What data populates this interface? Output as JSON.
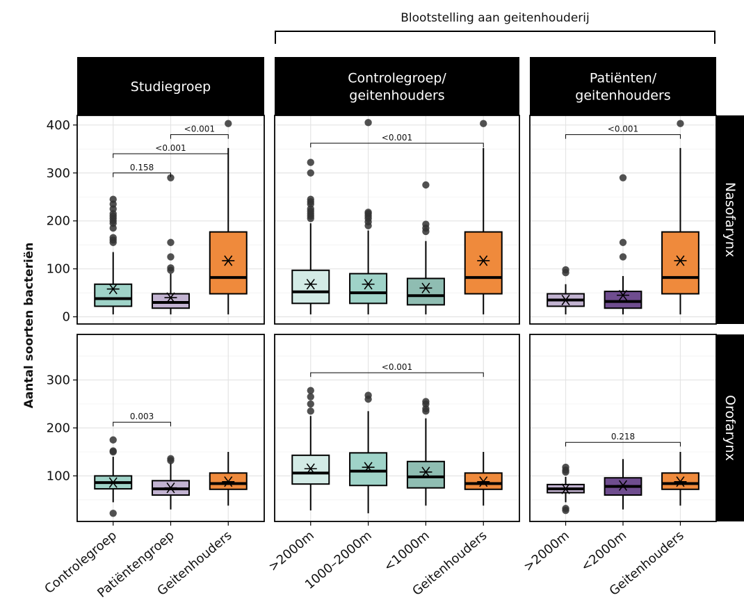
{
  "chart_data": {
    "type": "boxplot",
    "ylabel": "Aantal soorten bacteriën",
    "top_bracket_label": "Blootstelling aan geitenhouderij",
    "column_strips": [
      "Studiegroep",
      "Controlegroep/\ngeitenhouders",
      "Patiënten/\ngeitenhouders"
    ],
    "row_strips": [
      "Nasofarynx",
      "Orofarynx"
    ],
    "colors": {
      "controlegroep": "#9fd3c8",
      "patientengroep": "#c2b3d1",
      "geitenhouders": "#ef8a3c",
      "ctrl_gt2000": "#d3ebe6",
      "ctrl_1000_2000": "#9fd3c8",
      "ctrl_lt1000": "#8fbdb2",
      "pat_gt2000": "#c2b3d1",
      "pat_lt2000": "#6f4d8f",
      "strip_bg": "#000000"
    },
    "rows": [
      {
        "name": "Nasofarynx",
        "yticks": [
          0,
          100,
          200,
          300,
          400
        ],
        "ylim": [
          -15,
          420
        ],
        "panels": [
          {
            "categories": [
              "Controlegroep",
              "Patiëntengroep",
              "Geitenhouders"
            ],
            "boxes": [
              {
                "colorKey": "controlegroep",
                "q1": 22,
                "median": 38,
                "q3": 68,
                "lo": 5,
                "hi": 135,
                "mean": 58,
                "outliers": [
                  155,
                  160,
                  165,
                  185,
                  195,
                  200,
                  205,
                  210,
                  215,
                  225,
                  235,
                  245
                ]
              },
              {
                "colorKey": "patientengroep",
                "q1": 18,
                "median": 30,
                "q3": 48,
                "lo": 5,
                "hi": 90,
                "mean": 40,
                "outliers": [
                  97,
                  102,
                  125,
                  155,
                  290
                ]
              },
              {
                "colorKey": "geitenhouders",
                "q1": 48,
                "median": 82,
                "q3": 177,
                "lo": 5,
                "hi": 352,
                "mean": 117,
                "outliers": [
                  403
                ]
              }
            ],
            "brackets": [
              {
                "from": 0,
                "to": 1,
                "y": 300,
                "label": "0.158"
              },
              {
                "from": 0,
                "to": 2,
                "y": 340,
                "label": "<0.001"
              },
              {
                "from": 1,
                "to": 2,
                "y": 380,
                "label": "<0.001"
              }
            ]
          },
          {
            "categories": [
              ">2000m",
              "1000–2000m",
              "<1000m",
              "Geitenhouders"
            ],
            "boxes": [
              {
                "colorKey": "ctrl_gt2000",
                "q1": 28,
                "median": 52,
                "q3": 97,
                "lo": 5,
                "hi": 195,
                "mean": 68,
                "outliers": [
                  205,
                  210,
                  215,
                  220,
                  225,
                  235,
                  240,
                  245,
                  300,
                  322
                ]
              },
              {
                "colorKey": "ctrl_1000_2000",
                "q1": 28,
                "median": 50,
                "q3": 90,
                "lo": 5,
                "hi": 180,
                "mean": 68,
                "outliers": [
                  190,
                  198,
                  205,
                  210,
                  215,
                  218,
                  405
                ]
              },
              {
                "colorKey": "ctrl_lt1000",
                "q1": 25,
                "median": 44,
                "q3": 80,
                "lo": 5,
                "hi": 158,
                "mean": 60,
                "outliers": [
                  178,
                  185,
                  193,
                  275
                ]
              },
              {
                "colorKey": "geitenhouders",
                "q1": 48,
                "median": 82,
                "q3": 177,
                "lo": 5,
                "hi": 352,
                "mean": 117,
                "outliers": [
                  403
                ]
              }
            ],
            "brackets": [
              {
                "from": 0,
                "to": 3,
                "y": 362,
                "label": "<0.001"
              }
            ]
          },
          {
            "categories": [
              ">2000m",
              "<2000m",
              "Geitenhouders"
            ],
            "boxes": [
              {
                "colorKey": "pat_gt2000",
                "q1": 22,
                "median": 35,
                "q3": 48,
                "lo": 5,
                "hi": 68,
                "mean": 35,
                "outliers": [
                  92,
                  98
                ]
              },
              {
                "colorKey": "pat_lt2000",
                "q1": 18,
                "median": 32,
                "q3": 53,
                "lo": 5,
                "hi": 85,
                "mean": 45,
                "outliers": [
                  125,
                  155,
                  290
                ]
              },
              {
                "colorKey": "geitenhouders",
                "q1": 48,
                "median": 82,
                "q3": 177,
                "lo": 5,
                "hi": 352,
                "mean": 117,
                "outliers": [
                  403
                ]
              }
            ],
            "brackets": [
              {
                "from": 0,
                "to": 2,
                "y": 380,
                "label": "<0.001"
              }
            ]
          }
        ]
      },
      {
        "name": "Orofarynx",
        "yticks": [
          100,
          200,
          300
        ],
        "ylim": [
          5,
          395
        ],
        "panels": [
          {
            "categories": [
              "Controlegroep",
              "Patiëntengroep",
              "Geitenhouders"
            ],
            "boxes": [
              {
                "colorKey": "controlegroep",
                "q1": 73,
                "median": 86,
                "q3": 100,
                "lo": 45,
                "hi": 140,
                "mean": 86,
                "outliers": [
                  22,
                  150,
                  152,
                  175
                ]
              },
              {
                "colorKey": "patientengroep",
                "q1": 60,
                "median": 73,
                "q3": 90,
                "lo": 30,
                "hi": 128,
                "mean": 75,
                "outliers": [
                  132,
                  136
                ]
              },
              {
                "colorKey": "geitenhouders",
                "q1": 72,
                "median": 84,
                "q3": 106,
                "lo": 38,
                "hi": 150,
                "mean": 88,
                "outliers": []
              }
            ],
            "brackets": [
              {
                "from": 0,
                "to": 1,
                "y": 212,
                "label": "0.003"
              }
            ]
          },
          {
            "categories": [
              ">2000m",
              "1000–2000m",
              "<1000m",
              "Geitenhouders"
            ],
            "boxes": [
              {
                "colorKey": "ctrl_gt2000",
                "q1": 83,
                "median": 106,
                "q3": 143,
                "lo": 28,
                "hi": 225,
                "mean": 115,
                "outliers": [
                  235,
                  250,
                  265,
                  278
                ]
              },
              {
                "colorKey": "ctrl_1000_2000",
                "q1": 80,
                "median": 110,
                "q3": 148,
                "lo": 22,
                "hi": 235,
                "mean": 118,
                "outliers": [
                  260,
                  268
                ]
              },
              {
                "colorKey": "ctrl_lt1000",
                "q1": 75,
                "median": 98,
                "q3": 130,
                "lo": 38,
                "hi": 220,
                "mean": 108,
                "outliers": [
                  235,
                  240,
                  250,
                  255
                ]
              },
              {
                "colorKey": "geitenhouders",
                "q1": 72,
                "median": 84,
                "q3": 106,
                "lo": 38,
                "hi": 150,
                "mean": 88,
                "outliers": []
              }
            ],
            "brackets": [
              {
                "from": 0,
                "to": 3,
                "y": 315,
                "label": "<0.001"
              }
            ]
          },
          {
            "categories": [
              ">2000m",
              "<2000m",
              "Geitenhouders"
            ],
            "boxes": [
              {
                "colorKey": "pat_gt2000",
                "q1": 65,
                "median": 73,
                "q3": 82,
                "lo": 45,
                "hi": 98,
                "mean": 73,
                "outliers": [
                  28,
                  32,
                  108,
                  112,
                  118
                ]
              },
              {
                "colorKey": "pat_lt2000",
                "q1": 60,
                "median": 78,
                "q3": 96,
                "lo": 30,
                "hi": 135,
                "mean": 80,
                "outliers": []
              },
              {
                "colorKey": "geitenhouders",
                "q1": 72,
                "median": 84,
                "q3": 106,
                "lo": 38,
                "hi": 150,
                "mean": 88,
                "outliers": []
              }
            ],
            "brackets": [
              {
                "from": 0,
                "to": 2,
                "y": 170,
                "label": "0.218"
              }
            ]
          }
        ]
      }
    ]
  }
}
